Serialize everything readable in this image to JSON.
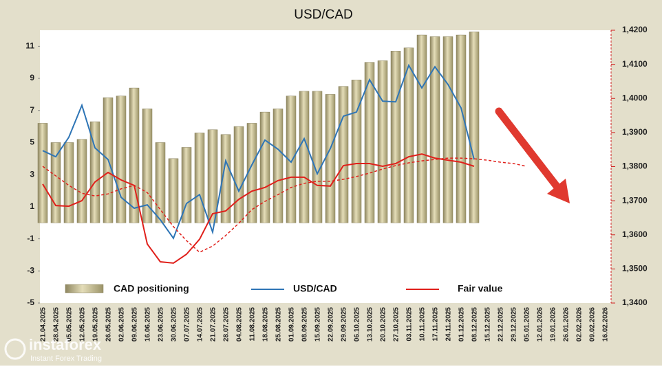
{
  "chart_data": {
    "type": "bar",
    "title": "USD/CAD",
    "categories": [
      "21.04.2025",
      "28.04.2025",
      "05.05.2025",
      "12.05.2025",
      "19.05.2025",
      "26.05.2025",
      "02.06.2025",
      "09.06.2025",
      "16.06.2025",
      "23.06.2025",
      "30.06.2025",
      "07.07.2025",
      "14.07.2025",
      "21.07.2025",
      "28.07.2025",
      "04.08.2025",
      "11.08.2025",
      "18.08.2025",
      "25.08.2025",
      "01.09.2025",
      "08.09.2025",
      "15.09.2025",
      "22.09.2025",
      "29.09.2025",
      "06.10.2025",
      "13.10.2025",
      "20.10.2025",
      "27.10.2025",
      "03.11.2025",
      "10.11.2025",
      "17.11.2025",
      "24.11.2025",
      "01.12.2025",
      "08.12.2025",
      "15.12.2025",
      "22.12.2025",
      "29.12.2025",
      "05.01.2026",
      "12.01.2026",
      "19.01.2026",
      "26.01.2026",
      "02.02.2026",
      "09.02.2026",
      "16.02.2026"
    ],
    "series": [
      {
        "name": "CAD positioning",
        "type": "bar",
        "color": "#c9c296",
        "values": [
          6.2,
          5.0,
          5.0,
          5.2,
          6.3,
          7.8,
          7.9,
          8.4,
          7.1,
          5.0,
          4.0,
          4.7,
          5.6,
          5.8,
          5.5,
          6.0,
          6.2,
          6.9,
          7.1,
          7.9,
          8.2,
          8.2,
          8.0,
          8.5,
          8.9,
          10.0,
          10.1,
          10.7,
          10.9,
          11.7,
          11.6,
          11.6,
          11.7,
          11.9,
          null,
          null,
          null,
          null,
          null,
          null,
          null,
          null,
          null,
          null
        ]
      },
      {
        "name": "USD/CAD",
        "type": "line",
        "axis": "y2",
        "color": "#2e75b6",
        "values": [
          1.3847,
          1.3829,
          1.3886,
          1.398,
          1.3855,
          1.3821,
          1.371,
          1.3678,
          1.3688,
          1.3644,
          1.359,
          1.3692,
          1.3718,
          1.3608,
          1.3817,
          1.3728,
          1.3805,
          1.3878,
          1.3851,
          1.3813,
          1.3882,
          1.3779,
          1.3853,
          1.3948,
          1.396,
          1.4055,
          1.3992,
          1.399,
          1.4097,
          1.4031,
          1.4093,
          1.4041,
          1.3972,
          1.3821,
          null,
          null,
          null,
          null,
          null,
          null,
          null,
          null,
          null,
          null
        ]
      },
      {
        "name": "Fair value",
        "type": "line",
        "axis": "y2",
        "color": "#e0201b",
        "values": [
          1.3749,
          1.3686,
          1.3684,
          1.37,
          1.3755,
          1.3783,
          1.3761,
          1.3745,
          1.3573,
          1.3521,
          1.3517,
          1.3543,
          1.3587,
          1.3662,
          1.367,
          1.3704,
          1.3728,
          1.3739,
          1.3759,
          1.3769,
          1.3769,
          1.3745,
          1.3743,
          1.3803,
          1.3809,
          1.3809,
          1.3801,
          1.3809,
          1.3829,
          1.3837,
          1.3825,
          1.3819,
          1.3813,
          1.3801,
          null,
          null,
          null,
          null,
          null,
          null,
          null,
          null,
          null,
          null
        ]
      },
      {
        "type": "line",
        "axis": "y2",
        "color": "#e0201b",
        "line_style": "dashed",
        "values": [
          1.3801,
          1.3773,
          1.3745,
          1.3722,
          1.3714,
          1.372,
          1.3735,
          1.3745,
          1.3724,
          1.3674,
          1.3624,
          1.3583,
          1.3549,
          1.3567,
          1.3598,
          1.3634,
          1.3674,
          1.3698,
          1.3718,
          1.3739,
          1.3751,
          1.3757,
          1.3757,
          1.3763,
          1.3771,
          1.3781,
          1.3793,
          1.3803,
          1.3811,
          1.3817,
          1.3821,
          1.3825,
          1.3825,
          1.3823,
          1.3819,
          1.3813,
          1.3809,
          1.3801,
          null,
          null,
          null,
          null,
          null,
          null
        ]
      }
    ],
    "ylim": [
      -5,
      12
    ],
    "yticks": [
      -5,
      -3,
      -1,
      1,
      3,
      5,
      7,
      9,
      11
    ],
    "y2lim": [
      1.34,
      1.42
    ],
    "y2ticks": [
      {
        "value": 1.34,
        "label": "1,3400"
      },
      {
        "value": 1.35,
        "label": "1,3500"
      },
      {
        "value": 1.36,
        "label": "1,3600"
      },
      {
        "value": 1.37,
        "label": "1,3700"
      },
      {
        "value": 1.38,
        "label": "1,3800"
      },
      {
        "value": 1.39,
        "label": "1,3900"
      },
      {
        "value": 1.4,
        "label": "1,4000"
      },
      {
        "value": 1.41,
        "label": "1,4100"
      },
      {
        "value": 1.42,
        "label": "1,4200"
      }
    ]
  },
  "watermark": {
    "brand": "instaforex",
    "tagline": "Instant Forex Trading"
  }
}
